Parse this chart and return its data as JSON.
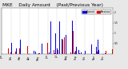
{
  "title": "MKE    Daily Amount    (Past/Previous Year)",
  "title_fontsize": 4.2,
  "background_color": "#e8e8e8",
  "plot_bg_color": "#ffffff",
  "bar_color_current": "#0000dd",
  "bar_color_prev": "#dd0000",
  "legend_color_current": "#0000dd",
  "legend_color_prev": "#dd0000",
  "legend_label_current": "Current",
  "legend_label_prev": "Previous",
  "num_days": 366,
  "ylim": [
    0,
    2.2
  ],
  "grid_color": "#888888",
  "tick_label_fontsize": 2.2,
  "ytick_vals": [
    0.5,
    1.0,
    1.5,
    2.0
  ],
  "ytick_labels": [
    "0.5",
    "1",
    "1.5",
    "2"
  ]
}
